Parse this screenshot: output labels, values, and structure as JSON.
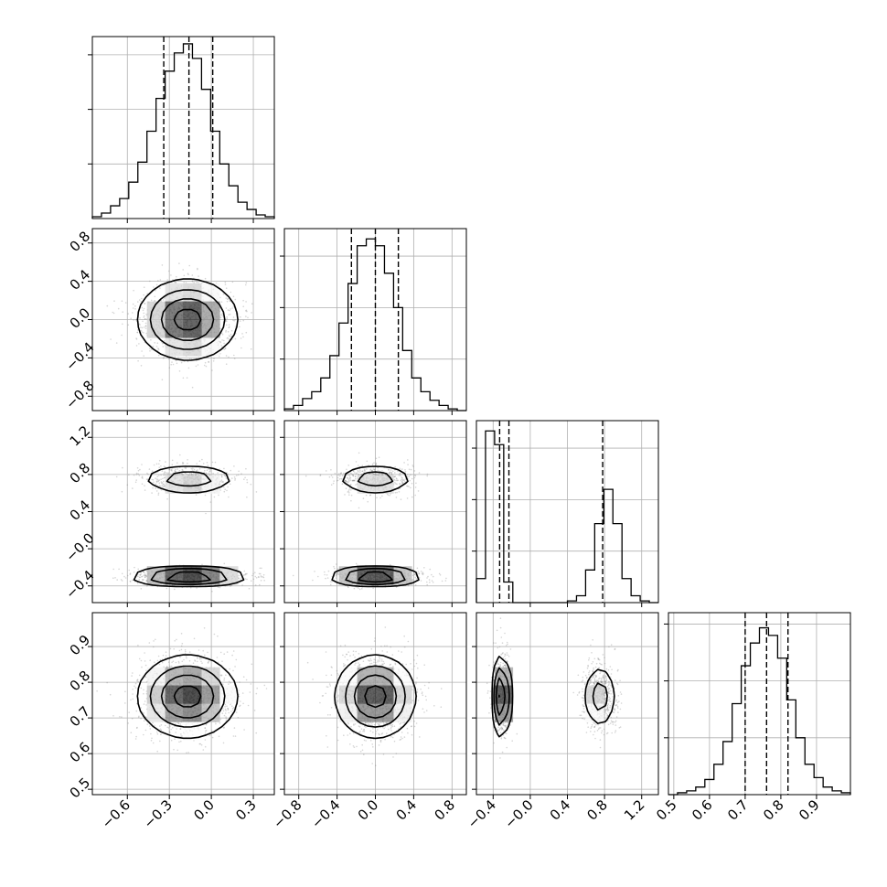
{
  "chart_data": {
    "type": "corner",
    "grid": true,
    "hist_bins": 20,
    "hist_color": "#000000",
    "contour_color": "#000000",
    "scatter_color": "#888888",
    "parameters": [
      {
        "index": 0,
        "range": [
          -0.85,
          0.45
        ],
        "ticks": [
          -0.6,
          -0.3,
          0.0,
          0.3
        ],
        "tick_labels": [
          "−0.6",
          "−0.3",
          "0.0",
          "0.3"
        ],
        "quantiles": [
          -0.34,
          -0.16,
          0.01
        ],
        "hist_counts": [
          1,
          3,
          7,
          11,
          20,
          31,
          48,
          66,
          81,
          91,
          96,
          88,
          71,
          48,
          30,
          18,
          9,
          5,
          2,
          1
        ],
        "hist_ymax": 100,
        "hist_yticks": [
          30,
          60,
          90
        ]
      },
      {
        "index": 1,
        "range": [
          -0.95,
          0.95
        ],
        "ticks": [
          -0.8,
          -0.4,
          0.0,
          0.4,
          0.8
        ],
        "tick_labels": [
          "−0.8",
          "−0.4",
          "0.0",
          "0.4",
          "0.8"
        ],
        "quantiles": [
          -0.25,
          0.0,
          0.24
        ],
        "hist_counts": [
          1,
          3,
          7,
          11,
          19,
          32,
          51,
          74,
          96,
          100,
          96,
          80,
          60,
          35,
          19,
          11,
          6,
          3,
          1,
          0
        ],
        "hist_ymax": 106,
        "hist_yticks": [
          30,
          60,
          90
        ]
      },
      {
        "index": 2,
        "range": [
          -0.58,
          1.38
        ],
        "ticks": [
          -0.4,
          0.0,
          0.4,
          0.8,
          1.2
        ],
        "tick_labels": [
          "−0.4",
          "−0.0",
          "0.4",
          "0.8",
          "1.2"
        ],
        "quantiles": [
          -0.33,
          -0.23,
          0.78
        ],
        "hist_counts": [
          14,
          100,
          92,
          12,
          0,
          0,
          0,
          0,
          0,
          0,
          1,
          4,
          19,
          46,
          66,
          46,
          14,
          4,
          1,
          0
        ],
        "hist_ymax": 106,
        "hist_yticks": [
          30,
          60,
          90
        ]
      },
      {
        "index": 3,
        "range": [
          0.485,
          0.995
        ],
        "ticks": [
          0.5,
          0.6,
          0.7,
          0.8,
          0.9
        ],
        "tick_labels": [
          "0.5",
          "0.6",
          "0.7",
          "0.8",
          "0.9"
        ],
        "quantiles": [
          0.7,
          0.76,
          0.82
        ],
        "hist_counts": [
          0,
          1,
          2,
          4,
          8,
          16,
          28,
          48,
          68,
          80,
          88,
          84,
          72,
          50,
          30,
          16,
          9,
          4,
          2,
          1
        ],
        "hist_ymax": 96,
        "hist_yticks": [
          30,
          60,
          90
        ]
      }
    ],
    "joint": [
      {
        "row": 1,
        "col": 0,
        "clusters": [
          {
            "cx": -0.17,
            "cy": 0.0,
            "sx": 0.17,
            "sy": 0.2,
            "w": 1.0
          }
        ]
      },
      {
        "row": 2,
        "col": 0,
        "clusters": [
          {
            "cx": -0.16,
            "cy": 0.75,
            "sx": 0.17,
            "sy": 0.08,
            "w": 0.42
          },
          {
            "cx": -0.16,
            "cy": -0.3,
            "sx": 0.2,
            "sy": 0.045,
            "w": 0.58
          }
        ]
      },
      {
        "row": 2,
        "col": 1,
        "clusters": [
          {
            "cx": 0.0,
            "cy": 0.75,
            "sx": 0.2,
            "sy": 0.08,
            "w": 0.42
          },
          {
            "cx": 0.0,
            "cy": -0.3,
            "sx": 0.23,
            "sy": 0.045,
            "w": 0.58
          }
        ]
      },
      {
        "row": 3,
        "col": 0,
        "clusters": [
          {
            "cx": -0.17,
            "cy": 0.76,
            "sx": 0.17,
            "sy": 0.055,
            "w": 1.0
          }
        ]
      },
      {
        "row": 3,
        "col": 1,
        "clusters": [
          {
            "cx": 0.0,
            "cy": 0.76,
            "sx": 0.2,
            "sy": 0.055,
            "w": 1.0
          }
        ]
      },
      {
        "row": 3,
        "col": 2,
        "clusters": [
          {
            "cx": -0.31,
            "cy": 0.76,
            "sx": 0.045,
            "sy": 0.055,
            "w": 0.58
          },
          {
            "cx": 0.75,
            "cy": 0.76,
            "sx": 0.09,
            "sy": 0.045,
            "w": 0.42
          }
        ]
      }
    ]
  }
}
